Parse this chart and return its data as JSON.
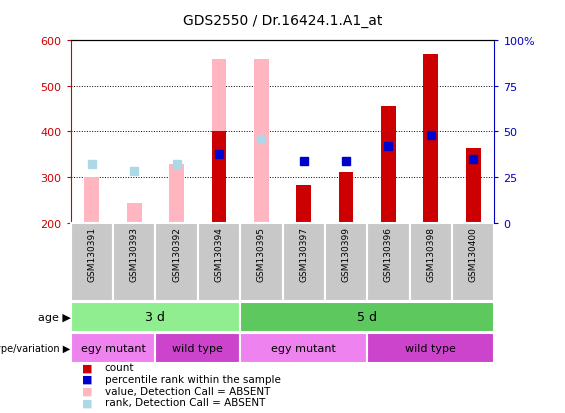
{
  "title": "GDS2550 / Dr.16424.1.A1_at",
  "samples": [
    "GSM130391",
    "GSM130393",
    "GSM130392",
    "GSM130394",
    "GSM130395",
    "GSM130397",
    "GSM130399",
    "GSM130396",
    "GSM130398",
    "GSM130400"
  ],
  "ylim_left": [
    200,
    600
  ],
  "ylim_right": [
    0,
    100
  ],
  "yticks_left": [
    200,
    300,
    400,
    500,
    600
  ],
  "yticks_right": [
    0,
    25,
    50,
    75,
    100
  ],
  "count": [
    null,
    null,
    null,
    400,
    null,
    283,
    310,
    455,
    570,
    363
  ],
  "rank": [
    null,
    null,
    null,
    350,
    null,
    335,
    335,
    368,
    393,
    340
  ],
  "value_absent": [
    300,
    243,
    328,
    560,
    560,
    null,
    null,
    null,
    null,
    null
  ],
  "rank_absent": [
    328,
    313,
    328,
    null,
    383,
    null,
    null,
    null,
    null,
    null
  ],
  "age_groups": [
    {
      "label": "3 d",
      "start": 0,
      "end": 4,
      "color": "#90EE90"
    },
    {
      "label": "5 d",
      "start": 4,
      "end": 10,
      "color": "#5DC85D"
    }
  ],
  "genotype_groups": [
    {
      "label": "egy mutant",
      "start": 0,
      "end": 2,
      "color": "#EE82EE"
    },
    {
      "label": "wild type",
      "start": 2,
      "end": 4,
      "color": "#CC44CC"
    },
    {
      "label": "egy mutant",
      "start": 4,
      "end": 7,
      "color": "#EE82EE"
    },
    {
      "label": "wild type",
      "start": 7,
      "end": 10,
      "color": "#CC44CC"
    }
  ],
  "count_color": "#CC0000",
  "rank_color": "#0000CC",
  "value_absent_color": "#FFB6C1",
  "rank_absent_color": "#ADD8E6",
  "tick_color_left": "#CC0000",
  "tick_color_right": "#0000BB",
  "legend_items": [
    {
      "label": "count",
      "color": "#CC0000"
    },
    {
      "label": "percentile rank within the sample",
      "color": "#0000CC"
    },
    {
      "label": "value, Detection Call = ABSENT",
      "color": "#FFB6C1"
    },
    {
      "label": "rank, Detection Call = ABSENT",
      "color": "#ADD8E6"
    }
  ]
}
